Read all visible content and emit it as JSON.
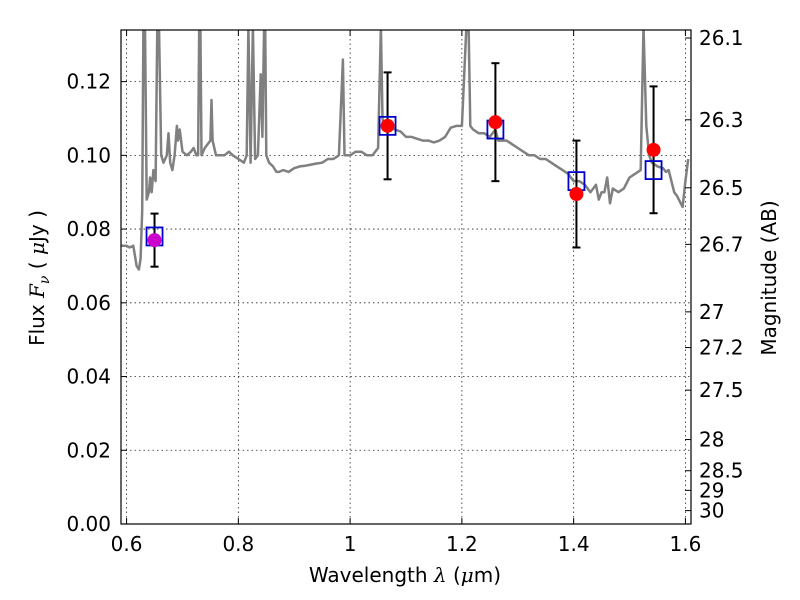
{
  "chart_data": {
    "type": "scatter",
    "xlabel_parts": [
      "Wavelength",
      "λ",
      "(",
      "μ",
      "m)"
    ],
    "ylabel_parts": [
      "Flux",
      "F",
      "ν",
      "(",
      "μ",
      "Jy",
      ")"
    ],
    "right_ylabel": "Magnitude (AB)",
    "xlim": [
      0.59,
      1.61
    ],
    "ylim": [
      0.0,
      0.134
    ],
    "grid": true,
    "x_ticks": [
      {
        "value": 0.6,
        "label": "0.6"
      },
      {
        "value": 0.8,
        "label": "0.8"
      },
      {
        "value": 1.0,
        "label": "1"
      },
      {
        "value": 1.2,
        "label": "1.2"
      },
      {
        "value": 1.4,
        "label": "1.4"
      },
      {
        "value": 1.6,
        "label": "1.6"
      }
    ],
    "y_ticks": [
      {
        "value": 0.0,
        "label": "0.00"
      },
      {
        "value": 0.02,
        "label": "0.02"
      },
      {
        "value": 0.04,
        "label": "0.04"
      },
      {
        "value": 0.06,
        "label": "0.06"
      },
      {
        "value": 0.08,
        "label": "0.08"
      },
      {
        "value": 0.1,
        "label": "0.10"
      },
      {
        "value": 0.12,
        "label": "0.12"
      }
    ],
    "right_ticks": [
      {
        "label": "26.1",
        "mag": 26.1
      },
      {
        "label": "26.3",
        "mag": 26.3
      },
      {
        "label": "26.5",
        "mag": 26.5
      },
      {
        "label": "26.7",
        "mag": 26.7
      },
      {
        "label": "27",
        "mag": 27.0
      },
      {
        "label": "27.2",
        "mag": 27.2
      },
      {
        "label": "27.5",
        "mag": 27.5
      },
      {
        "label": "28",
        "mag": 28.0
      },
      {
        "label": "28.5",
        "mag": 28.5
      },
      {
        "label": "29",
        "mag": 29.0
      },
      {
        "label": "30",
        "mag": 30.0
      }
    ],
    "series": [
      {
        "marker": "circle",
        "color": "#ff0000",
        "points": [
          {
            "x": 0.65,
            "y": 0.077,
            "err": 0.0072,
            "color": "#cc00cc"
          },
          {
            "x": 1.067,
            "y": 0.108,
            "err": 0.0145
          },
          {
            "x": 1.26,
            "y": 0.109,
            "err": 0.016
          },
          {
            "x": 1.405,
            "y": 0.0895,
            "err": 0.0145
          },
          {
            "x": 1.543,
            "y": 0.1015,
            "err": 0.0172
          }
        ]
      },
      {
        "marker": "square",
        "color": "#0000cc",
        "points": [
          {
            "x": 0.65,
            "y": 0.078
          },
          {
            "x": 1.067,
            "y": 0.108
          },
          {
            "x": 1.26,
            "y": 0.107
          },
          {
            "x": 1.405,
            "y": 0.093
          },
          {
            "x": 1.543,
            "y": 0.096
          }
        ]
      },
      {
        "marker": "line",
        "color": "#808080",
        "points": [
          [
            0.59,
            0.0755
          ],
          [
            0.6,
            0.0755
          ],
          [
            0.605,
            0.075
          ],
          [
            0.612,
            0.0755
          ],
          [
            0.618,
            0.07
          ],
          [
            0.622,
            0.069
          ],
          [
            0.625,
            0.072
          ],
          [
            0.628,
            0.085
          ],
          [
            0.63,
            0.135
          ],
          [
            0.633,
            0.135
          ],
          [
            0.636,
            0.088
          ],
          [
            0.64,
            0.09
          ],
          [
            0.642,
            0.094
          ],
          [
            0.645,
            0.09
          ],
          [
            0.648,
            0.096
          ],
          [
            0.652,
            0.093
          ],
          [
            0.655,
            0.135
          ],
          [
            0.658,
            0.135
          ],
          [
            0.662,
            0.1
          ],
          [
            0.666,
            0.098
          ],
          [
            0.672,
            0.1
          ],
          [
            0.675,
            0.106
          ],
          [
            0.678,
            0.098
          ],
          [
            0.682,
            0.096
          ],
          [
            0.686,
            0.1
          ],
          [
            0.69,
            0.108
          ],
          [
            0.692,
            0.104
          ],
          [
            0.695,
            0.107
          ],
          [
            0.7,
            0.101
          ],
          [
            0.708,
            0.1
          ],
          [
            0.715,
            0.101
          ],
          [
            0.72,
            0.102
          ],
          [
            0.725,
            0.1
          ],
          [
            0.728,
            0.1
          ],
          [
            0.73,
            0.135
          ],
          [
            0.732,
            0.135
          ],
          [
            0.734,
            0.1
          ],
          [
            0.74,
            0.102
          ],
          [
            0.745,
            0.103
          ],
          [
            0.75,
            0.104
          ],
          [
            0.752,
            0.115
          ],
          [
            0.754,
            0.104
          ],
          [
            0.76,
            0.1
          ],
          [
            0.768,
            0.1
          ],
          [
            0.775,
            0.1
          ],
          [
            0.783,
            0.101
          ],
          [
            0.79,
            0.1
          ],
          [
            0.8,
            0.099
          ],
          [
            0.81,
            0.098
          ],
          [
            0.815,
            0.1
          ],
          [
            0.818,
            0.135
          ],
          [
            0.822,
            0.098
          ],
          [
            0.826,
            0.135
          ],
          [
            0.83,
            0.099
          ],
          [
            0.835,
            0.1
          ],
          [
            0.84,
            0.122
          ],
          [
            0.843,
            0.105
          ],
          [
            0.846,
            0.135
          ],
          [
            0.848,
            0.135
          ],
          [
            0.85,
            0.1
          ],
          [
            0.855,
            0.098
          ],
          [
            0.862,
            0.097
          ],
          [
            0.868,
            0.0955
          ],
          [
            0.873,
            0.0955
          ],
          [
            0.88,
            0.096
          ],
          [
            0.89,
            0.0955
          ],
          [
            0.9,
            0.0965
          ],
          [
            0.91,
            0.097
          ],
          [
            0.92,
            0.0972
          ],
          [
            0.93,
            0.0975
          ],
          [
            0.94,
            0.0978
          ],
          [
            0.95,
            0.098
          ],
          [
            0.96,
            0.099
          ],
          [
            0.97,
            0.099
          ],
          [
            0.98,
            0.1
          ],
          [
            0.985,
            0.118
          ],
          [
            0.987,
            0.126
          ],
          [
            0.99,
            0.1
          ],
          [
            0.995,
            0.1
          ],
          [
            1.0,
            0.1
          ],
          [
            1.01,
            0.101
          ],
          [
            1.02,
            0.101
          ],
          [
            1.03,
            0.1
          ],
          [
            1.04,
            0.1
          ],
          [
            1.05,
            0.102
          ],
          [
            1.055,
            0.135
          ],
          [
            1.058,
            0.11
          ],
          [
            1.06,
            0.108
          ],
          [
            1.065,
            0.109
          ],
          [
            1.07,
            0.108
          ],
          [
            1.08,
            0.107
          ],
          [
            1.09,
            0.1065
          ],
          [
            1.1,
            0.105
          ],
          [
            1.11,
            0.105
          ],
          [
            1.12,
            0.1045
          ],
          [
            1.13,
            0.104
          ],
          [
            1.14,
            0.104
          ],
          [
            1.15,
            0.1035
          ],
          [
            1.16,
            0.104
          ],
          [
            1.17,
            0.105
          ],
          [
            1.18,
            0.1075
          ],
          [
            1.19,
            0.108
          ],
          [
            1.2,
            0.108
          ],
          [
            1.208,
            0.135
          ],
          [
            1.212,
            0.135
          ],
          [
            1.215,
            0.108
          ],
          [
            1.22,
            0.107
          ],
          [
            1.23,
            0.106
          ],
          [
            1.24,
            0.106
          ],
          [
            1.25,
            0.105
          ],
          [
            1.255,
            0.106
          ],
          [
            1.26,
            0.107
          ],
          [
            1.265,
            0.104
          ],
          [
            1.27,
            0.104
          ],
          [
            1.28,
            0.104
          ],
          [
            1.29,
            0.103
          ],
          [
            1.3,
            0.102
          ],
          [
            1.31,
            0.101
          ],
          [
            1.32,
            0.1
          ],
          [
            1.33,
            0.1
          ],
          [
            1.34,
            0.099
          ],
          [
            1.35,
            0.099
          ],
          [
            1.36,
            0.098
          ],
          [
            1.37,
            0.097
          ],
          [
            1.38,
            0.096
          ],
          [
            1.39,
            0.095
          ],
          [
            1.4,
            0.093
          ],
          [
            1.41,
            0.093
          ],
          [
            1.42,
            0.092
          ],
          [
            1.43,
            0.09
          ],
          [
            1.44,
            0.092
          ],
          [
            1.445,
            0.088
          ],
          [
            1.45,
            0.09
          ],
          [
            1.455,
            0.09
          ],
          [
            1.46,
            0.094
          ],
          [
            1.465,
            0.087
          ],
          [
            1.47,
            0.091
          ],
          [
            1.48,
            0.09
          ],
          [
            1.49,
            0.091
          ],
          [
            1.5,
            0.094
          ],
          [
            1.51,
            0.095
          ],
          [
            1.52,
            0.096
          ],
          [
            1.525,
            0.135
          ],
          [
            1.53,
            0.108
          ],
          [
            1.535,
            0.1
          ],
          [
            1.54,
            0.098
          ],
          [
            1.55,
            0.097
          ],
          [
            1.56,
            0.0965
          ],
          [
            1.565,
            0.0955
          ],
          [
            1.57,
            0.096
          ],
          [
            1.575,
            0.093
          ],
          [
            1.58,
            0.09
          ],
          [
            1.585,
            0.089
          ],
          [
            1.59,
            0.0875
          ],
          [
            1.595,
            0.086
          ],
          [
            1.6,
            0.093
          ],
          [
            1.605,
            0.099
          ]
        ]
      }
    ]
  }
}
